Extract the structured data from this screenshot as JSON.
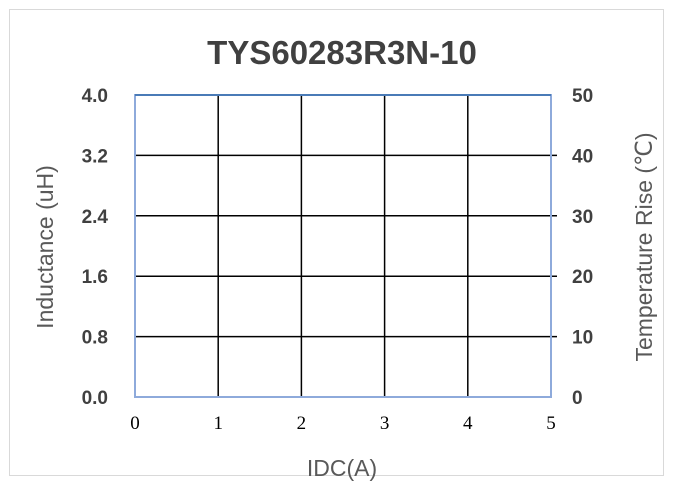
{
  "chart_data": {
    "type": "line",
    "title": "TYS60283R3N-10",
    "xlabel": "IDC(A)",
    "ylabel": "Inductance (uH)",
    "y2label": "Temperature Rise (℃)",
    "x_ticks": [
      "0",
      "1",
      "2",
      "3",
      "4",
      "5"
    ],
    "y_ticks": [
      "0.0",
      "0.8",
      "1.6",
      "2.4",
      "3.2",
      "4.0"
    ],
    "y2_ticks": [
      "0",
      "10",
      "20",
      "30",
      "40",
      "50"
    ],
    "xlim": [
      0,
      5
    ],
    "ylim": [
      0,
      4.0
    ],
    "y2lim": [
      0,
      50
    ],
    "grid": true,
    "series": [],
    "colors": {
      "grid": "#000000",
      "plot_border": "#8eaadb",
      "top_line": "#4a7bb7",
      "title": "#404040",
      "tick_label": "#404040",
      "axis_title": "#595959"
    }
  }
}
